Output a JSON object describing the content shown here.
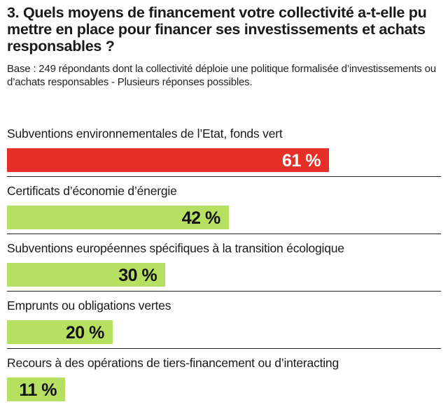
{
  "title": "3. Quels moyens de financement votre collectivité a-t-elle pu mettre en place pour financer ses investissements et achats responsables ?",
  "subtitle": "Base : 249 répondants dont la collectivité déploie une politique formalisée d’investissements ou d’achats responsables - Plusieurs réponses possibles.",
  "colors": {
    "highlight": "#e63027",
    "default": "#b5e061",
    "highlight_text": "#ffffff",
    "default_text": "#111111"
  },
  "chart_data": {
    "type": "bar",
    "orientation": "horizontal",
    "title": "3. Quels moyens de financement votre collectivité a-t-elle pu mettre en place pour financer ses investissements et achats responsables ?",
    "categories": [
      "Subventions environnementales de l’Etat, fonds vert",
      "Certificats d’économie d’énergie",
      "Subventions européennes spécifiques à la transition écologique",
      "Emprunts ou obligations vertes",
      "Recours à des opérations de tiers-financement ou d’interacting"
    ],
    "values": [
      61,
      42,
      30,
      20,
      11
    ],
    "value_labels": [
      "61 %",
      "42 %",
      "30 %",
      "20 %",
      "11 %"
    ],
    "unit": "%",
    "xlim": [
      0,
      100
    ],
    "highlighted_index": 0,
    "grid": false,
    "legend": "none"
  }
}
